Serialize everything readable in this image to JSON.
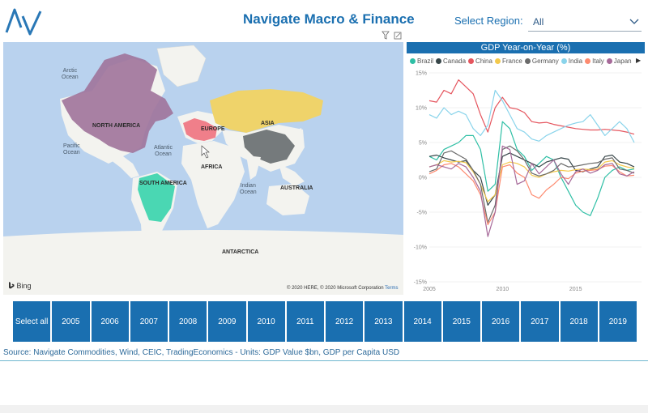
{
  "header": {
    "title": "Navigate Macro & Finance",
    "region_label": "Select Region:",
    "region_value": "All",
    "accent_color": "#1a6fb0"
  },
  "map": {
    "labels": {
      "arctic_ocean": "Arctic\nOcean",
      "north_america": "NORTH AMERICA",
      "pacific_ocean": "Pacific\nOcean",
      "atlantic_ocean": "Atlantic\nOcean",
      "europe": "EUROPE",
      "asia": "ASIA",
      "africa": "AFRICA",
      "south_america": "SOUTH AMERICA",
      "indian_ocean": "Indian\nOcean",
      "australia": "AUSTRALIA",
      "antarctica": "ANTARCTICA"
    },
    "bing": "Bing",
    "copyright": "© 2020 HERE, © 2020 Microsoft Corporation",
    "terms": "Terms",
    "region_colors": {
      "canada": "#a0739a",
      "usa": "#a0739a",
      "europe": "#f07f8a",
      "russia": "#efd36a",
      "china": "#757a7c",
      "brazil": "#4ad7b3"
    }
  },
  "chart_data": {
    "type": "line",
    "title": "GDP Year-on-Year (%)",
    "xlabel": "",
    "ylabel": "",
    "xlim": [
      2005,
      2019.5
    ],
    "ylim": [
      -15,
      15
    ],
    "x_ticks": [
      2005,
      2010,
      2015
    ],
    "y_ticks": [
      "15%",
      "10%",
      "5%",
      "0%",
      "-5%",
      "-10%",
      "-15%"
    ],
    "legend_position": "top",
    "series": [
      {
        "name": "Brazil",
        "color": "#2ebfa5",
        "x": [
          2005,
          2005.5,
          2006,
          2006.5,
          2007,
          2007.5,
          2008,
          2008.5,
          2009,
          2009.5,
          2010,
          2010.5,
          2011,
          2011.5,
          2012,
          2012.5,
          2013,
          2013.5,
          2014,
          2014.5,
          2015,
          2015.5,
          2016,
          2016.5,
          2017,
          2017.5,
          2018,
          2018.5,
          2019
        ],
        "values": [
          3,
          2.5,
          4,
          4.5,
          5,
          6,
          6,
          4,
          -2,
          -1,
          8,
          7,
          4,
          3,
          1,
          2,
          3,
          2.5,
          0,
          -2,
          -4,
          -5,
          -5.5,
          -3,
          0,
          1,
          1.5,
          1,
          1.2
        ]
      },
      {
        "name": "Canada",
        "color": "#374649",
        "x": [
          2005,
          2005.5,
          2006,
          2006.5,
          2007,
          2007.5,
          2008,
          2008.5,
          2009,
          2009.5,
          2010,
          2010.5,
          2011,
          2011.5,
          2012,
          2012.5,
          2013,
          2013.5,
          2014,
          2014.5,
          2015,
          2015.5,
          2016,
          2016.5,
          2017,
          2017.5,
          2018,
          2018.5,
          2019
        ],
        "values": [
          3,
          3.2,
          2.8,
          2.5,
          2.2,
          2.4,
          1,
          0,
          -4,
          -2.5,
          3,
          3.5,
          3,
          2.5,
          2,
          1.5,
          2.2,
          2.5,
          2.8,
          2.6,
          1,
          0.8,
          1.2,
          1.5,
          3,
          3.2,
          2.2,
          2,
          1.5
        ]
      },
      {
        "name": "China",
        "color": "#e5555e",
        "x": [
          2005,
          2005.5,
          2006,
          2006.5,
          2007,
          2007.5,
          2008,
          2008.5,
          2009,
          2009.5,
          2010,
          2010.5,
          2011,
          2011.5,
          2012,
          2012.5,
          2013,
          2013.5,
          2014,
          2014.5,
          2015,
          2015.5,
          2016,
          2016.5,
          2017,
          2017.5,
          2018,
          2018.5,
          2019
        ],
        "values": [
          11,
          10.8,
          12.5,
          12,
          14,
          13,
          12,
          9,
          6.5,
          10,
          11.5,
          10,
          9.8,
          9.3,
          8,
          7.8,
          7.9,
          7.6,
          7.4,
          7.2,
          7,
          6.9,
          6.8,
          6.8,
          6.9,
          6.8,
          6.7,
          6.5,
          6.2
        ]
      },
      {
        "name": "France",
        "color": "#f3c94c",
        "x": [
          2005,
          2005.5,
          2006,
          2006.5,
          2007,
          2007.5,
          2008,
          2008.5,
          2009,
          2009.5,
          2010,
          2010.5,
          2011,
          2011.5,
          2012,
          2012.5,
          2013,
          2013.5,
          2014,
          2014.5,
          2015,
          2015.5,
          2016,
          2016.5,
          2017,
          2017.5,
          2018,
          2018.5,
          2019
        ],
        "values": [
          1.5,
          1.8,
          2.4,
          2.2,
          2.3,
          2.1,
          0.8,
          -1,
          -3.5,
          -2.5,
          1.8,
          2.2,
          2,
          1.5,
          0.3,
          0,
          0.5,
          0.8,
          1,
          0.9,
          1.1,
          1.2,
          1.1,
          1.2,
          2.2,
          2.4,
          1.8,
          1.5,
          1.3
        ]
      },
      {
        "name": "Germany",
        "color": "#6b6b6b",
        "x": [
          2005,
          2005.5,
          2006,
          2006.5,
          2007,
          2007.5,
          2008,
          2008.5,
          2009,
          2009.5,
          2010,
          2010.5,
          2011,
          2011.5,
          2012,
          2012.5,
          2013,
          2013.5,
          2014,
          2014.5,
          2015,
          2015.5,
          2016,
          2016.5,
          2017,
          2017.5,
          2018,
          2018.5,
          2019
        ],
        "values": [
          0.8,
          1.2,
          3.5,
          3.8,
          3.2,
          2.6,
          1,
          -1,
          -6.5,
          -4,
          4,
          4.5,
          3.8,
          2.5,
          0.6,
          0.2,
          0.5,
          1,
          2,
          1.5,
          1.6,
          1.8,
          2,
          2.1,
          2.6,
          2.8,
          1.2,
          1,
          0.6
        ]
      },
      {
        "name": "India",
        "color": "#8ad4eb",
        "x": [
          2005,
          2005.5,
          2006,
          2006.5,
          2007,
          2007.5,
          2008,
          2008.5,
          2009,
          2009.5,
          2010,
          2010.5,
          2011,
          2011.5,
          2012,
          2012.5,
          2013,
          2013.5,
          2014,
          2014.5,
          2015,
          2015.5,
          2016,
          2016.5,
          2017,
          2017.5,
          2018,
          2018.5,
          2019
        ],
        "values": [
          9,
          8.5,
          10,
          9,
          9.5,
          9,
          7,
          6,
          7.5,
          12.5,
          11,
          9,
          7,
          6.5,
          5.5,
          5.2,
          6,
          6.5,
          7,
          7.5,
          7.8,
          8,
          9,
          7.5,
          6,
          7,
          8,
          7,
          5
        ]
      },
      {
        "name": "Italy",
        "color": "#fd8b70",
        "x": [
          2005,
          2005.5,
          2006,
          2006.5,
          2007,
          2007.5,
          2008,
          2008.5,
          2009,
          2009.5,
          2010,
          2010.5,
          2011,
          2011.5,
          2012,
          2012.5,
          2013,
          2013.5,
          2014,
          2014.5,
          2015,
          2015.5,
          2016,
          2016.5,
          2017,
          2017.5,
          2018,
          2018.5,
          2019
        ],
        "values": [
          0.5,
          1,
          1.8,
          2,
          1.5,
          0.5,
          -0.5,
          -2.5,
          -6.8,
          -5,
          1.5,
          1.8,
          0.6,
          0,
          -2.5,
          -3,
          -1.8,
          -1,
          0,
          -0.2,
          0.6,
          0.9,
          1,
          1.1,
          1.6,
          1.7,
          0.8,
          0.2,
          0.3
        ]
      },
      {
        "name": "Japan",
        "color": "#a66999",
        "x": [
          2005,
          2005.5,
          2006,
          2006.5,
          2007,
          2007.5,
          2008,
          2008.5,
          2009,
          2009.5,
          2010,
          2010.5,
          2011,
          2011.5,
          2012,
          2012.5,
          2013,
          2013.5,
          2014,
          2014.5,
          2015,
          2015.5,
          2016,
          2016.5,
          2017,
          2017.5,
          2018,
          2018.5,
          2019
        ],
        "values": [
          1.5,
          1.8,
          1.5,
          1.2,
          2,
          1.5,
          0,
          -2,
          -8.5,
          -5,
          4.5,
          4,
          -1,
          -0.5,
          2,
          0.5,
          1.5,
          2.5,
          0.5,
          -1,
          0.8,
          1.2,
          0.6,
          1,
          1.8,
          2,
          0.5,
          0.2,
          0.8
        ]
      }
    ]
  },
  "years": {
    "select_all": "Select all",
    "items": [
      "2005",
      "2006",
      "2007",
      "2008",
      "2009",
      "2010",
      "2011",
      "2012",
      "2013",
      "2014",
      "2015",
      "2016",
      "2017",
      "2018",
      "2019"
    ]
  },
  "footer": {
    "source": "Source: Navigate Commodities, Wind, CEIC, TradingEconomics - Units: GDP Value $bn, GDP per Capita USD"
  }
}
